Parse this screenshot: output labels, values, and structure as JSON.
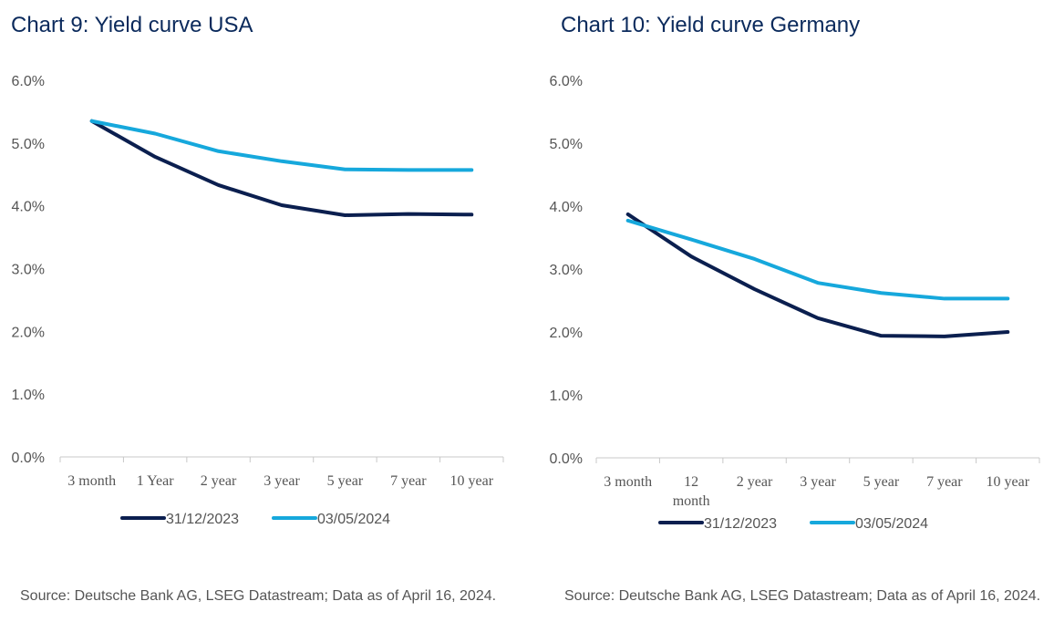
{
  "chart_data": [
    {
      "type": "line",
      "title": "Chart 9: Yield curve USA",
      "categories": [
        "3 month",
        "1 Year",
        "2 year",
        "3 year",
        "5 year",
        "7 year",
        "10 year"
      ],
      "ylim": [
        0,
        6
      ],
      "yticks": [
        "0.0%",
        "1.0%",
        "2.0%",
        "3.0%",
        "4.0%",
        "5.0%",
        "6.0%"
      ],
      "series": [
        {
          "name": "31/12/2023",
          "color": "#0b1f4f",
          "values": [
            5.35,
            4.78,
            4.33,
            4.01,
            3.85,
            3.87,
            3.86
          ]
        },
        {
          "name": "03/05/2024",
          "color": "#16a8dc",
          "values": [
            5.35,
            5.15,
            4.87,
            4.71,
            4.58,
            4.57,
            4.57
          ]
        }
      ],
      "source": "Source: Deutsche Bank AG, LSEG Datastream; Data as of April 16, 2024."
    },
    {
      "type": "line",
      "title": "Chart 10: Yield curve Germany",
      "categories": [
        "3 month",
        "12 month",
        "2 year",
        "3 year",
        "5 year",
        "7 year",
        "10 year"
      ],
      "ylim": [
        0,
        6
      ],
      "yticks": [
        "0.0%",
        "1.0%",
        "2.0%",
        "3.0%",
        "4.0%",
        "5.0%",
        "6.0%"
      ],
      "series": [
        {
          "name": "31/12/2023",
          "color": "#0b1f4f",
          "values": [
            3.87,
            3.2,
            2.68,
            2.22,
            1.94,
            1.93,
            2.0
          ]
        },
        {
          "name": "03/05/2024",
          "color": "#16a8dc",
          "values": [
            3.77,
            3.47,
            3.16,
            2.78,
            2.62,
            2.53,
            2.53
          ]
        }
      ],
      "source": "Source: Deutsche Bank AG, LSEG Datastream; Data as of April 16, 2024."
    }
  ]
}
